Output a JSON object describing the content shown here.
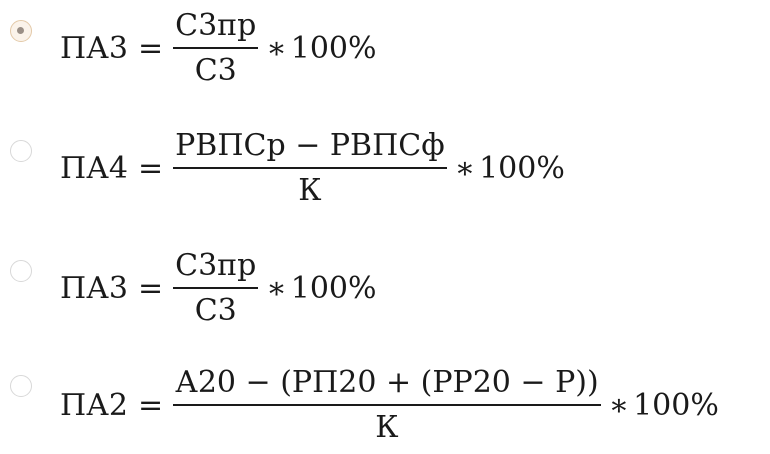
{
  "options": [
    {
      "selected": true,
      "lhs": "ПА3",
      "eq": "=",
      "numerator": "С3пр",
      "denominator": "С3",
      "times": "∗",
      "multiplier": "100%"
    },
    {
      "selected": false,
      "lhs": "ПА4",
      "eq": "=",
      "numerator": "РВПСр − РВПСф",
      "denominator": "К",
      "times": "∗",
      "multiplier": "100%"
    },
    {
      "selected": false,
      "lhs": "ПА3",
      "eq": "=",
      "numerator": "С3пр",
      "denominator": "С3",
      "times": "∗",
      "multiplier": "100%"
    },
    {
      "selected": false,
      "lhs": "ПА2",
      "eq": "=",
      "numerator": "А20 − (РП20 + (РР20 − Р))",
      "denominator": "К",
      "times": "∗",
      "multiplier": "100%"
    }
  ],
  "colors": {
    "radio_selected_border": "#e3c9a8",
    "radio_dot": "#9a8f86",
    "radio_border": "#d8d8d8",
    "text": "#1a1a1a"
  }
}
